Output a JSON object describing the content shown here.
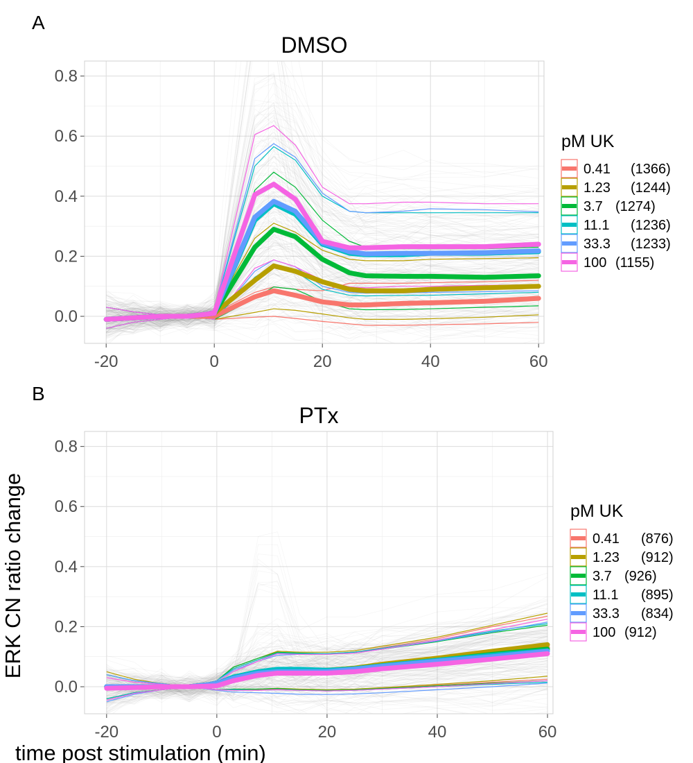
{
  "figure": {
    "shared_xlabel": "time post stimulation (min)",
    "shared_ylabel": "ERK CN ratio change"
  },
  "chart_data": [
    {
      "type": "line",
      "panel_label": "A",
      "title": "DMSO",
      "xlabel": "time post stimulation (min)",
      "ylabel": "ERK CN ratio change",
      "xlim": [
        -24,
        61
      ],
      "ylim": [
        -0.09,
        0.85
      ],
      "xticks": [
        -20,
        0,
        20,
        40,
        60
      ],
      "yticks": [
        0.0,
        0.2,
        0.4,
        0.6,
        0.8
      ],
      "grid": true,
      "legend": {
        "title": "pM UK",
        "position": "right"
      },
      "x": [
        -20,
        -15,
        -10,
        -5,
        0,
        7.5,
        11,
        15,
        20,
        25,
        28,
        35,
        40,
        50,
        60
      ],
      "series": [
        {
          "name": "0.41",
          "count": "(1366)",
          "color": "#F8766D",
          "values": [
            -0.01,
            -0.005,
            0.0,
            0.0,
            0.0,
            0.065,
            0.085,
            0.07,
            0.048,
            0.038,
            0.038,
            0.043,
            0.045,
            0.05,
            0.06
          ],
          "lower": [
            -0.04,
            -0.02,
            -0.01,
            0.0,
            -0.01,
            -0.003,
            0.0,
            -0.007,
            -0.017,
            -0.025,
            -0.03,
            -0.03,
            -0.028,
            -0.025,
            -0.02
          ],
          "upper": [
            0.03,
            0.015,
            0.005,
            0.0,
            0.01,
            0.08,
            0.098,
            0.09,
            0.085,
            0.11,
            0.11,
            0.11,
            0.112,
            0.115,
            0.12
          ]
        },
        {
          "name": "1.23",
          "count": "(1244)",
          "color": "#B79F00",
          "values": [
            -0.01,
            -0.005,
            0.0,
            0.0,
            0.01,
            0.12,
            0.168,
            0.15,
            0.115,
            0.09,
            0.085,
            0.085,
            0.09,
            0.095,
            0.1
          ],
          "lower": [
            -0.04,
            -0.02,
            -0.01,
            0.0,
            -0.01,
            0.013,
            0.025,
            0.02,
            0.008,
            -0.005,
            -0.01,
            -0.01,
            -0.008,
            -0.003,
            0.005
          ],
          "upper": [
            0.03,
            0.015,
            0.005,
            0.0,
            0.02,
            0.26,
            0.31,
            0.28,
            0.22,
            0.19,
            0.185,
            0.185,
            0.19,
            0.192,
            0.195
          ]
        },
        {
          "name": "3.7",
          "count": "(1274)",
          "color": "#00BA38",
          "values": [
            -0.01,
            -0.005,
            0.0,
            0.0,
            0.01,
            0.23,
            0.29,
            0.265,
            0.19,
            0.145,
            0.135,
            0.133,
            0.133,
            0.13,
            0.135
          ],
          "lower": [
            -0.04,
            -0.02,
            -0.01,
            0.0,
            -0.01,
            0.06,
            0.098,
            0.09,
            0.05,
            0.025,
            0.022,
            0.023,
            0.025,
            0.03,
            0.035
          ],
          "upper": [
            0.03,
            0.015,
            0.005,
            0.0,
            0.02,
            0.42,
            0.48,
            0.43,
            0.32,
            0.25,
            0.23,
            0.225,
            0.225,
            0.225,
            0.23
          ]
        },
        {
          "name": "11.1",
          "count": "(1236)",
          "color": "#00BFC4",
          "values": [
            -0.01,
            -0.005,
            0.0,
            0.0,
            0.01,
            0.32,
            0.375,
            0.34,
            0.24,
            0.21,
            0.205,
            0.205,
            0.21,
            0.21,
            0.215
          ],
          "lower": [
            -0.04,
            -0.02,
            -0.01,
            0.0,
            -0.01,
            0.13,
            0.17,
            0.15,
            0.09,
            0.07,
            0.068,
            0.07,
            0.07,
            0.075,
            0.08
          ],
          "upper": [
            0.03,
            0.015,
            0.005,
            0.0,
            0.02,
            0.5,
            0.565,
            0.52,
            0.4,
            0.35,
            0.345,
            0.345,
            0.345,
            0.345,
            0.345
          ]
        },
        {
          "name": "33.3",
          "count": "(1233)",
          "color": "#619CFF",
          "values": [
            -0.01,
            -0.005,
            0.0,
            0.0,
            0.01,
            0.33,
            0.383,
            0.35,
            0.245,
            0.215,
            0.208,
            0.21,
            0.21,
            0.212,
            0.218
          ],
          "lower": [
            -0.04,
            -0.02,
            -0.01,
            0.0,
            -0.01,
            0.15,
            0.188,
            0.165,
            0.1,
            0.08,
            0.077,
            0.078,
            0.08,
            0.082,
            0.085
          ],
          "upper": [
            0.03,
            0.015,
            0.005,
            0.0,
            0.02,
            0.525,
            0.575,
            0.53,
            0.41,
            0.35,
            0.345,
            0.35,
            0.358,
            0.355,
            0.348
          ]
        },
        {
          "name": "100",
          "count": "(1155)",
          "color": "#F564E3",
          "values": [
            -0.01,
            -0.005,
            0.0,
            0.0,
            0.01,
            0.405,
            0.44,
            0.39,
            0.25,
            0.228,
            0.228,
            0.232,
            0.232,
            0.232,
            0.24
          ],
          "lower": [
            -0.04,
            -0.02,
            -0.01,
            0.0,
            -0.01,
            0.16,
            0.188,
            0.165,
            0.12,
            0.098,
            0.095,
            0.1,
            0.1,
            0.103,
            0.105
          ],
          "upper": [
            0.03,
            0.015,
            0.005,
            0.0,
            0.02,
            0.605,
            0.635,
            0.57,
            0.43,
            0.375,
            0.375,
            0.38,
            0.38,
            0.375,
            0.375
          ]
        }
      ]
    },
    {
      "type": "line",
      "panel_label": "B",
      "title": "PTx",
      "xlabel": "time post stimulation (min)",
      "ylabel": "ERK CN ratio change",
      "xlim": [
        -24,
        61
      ],
      "ylim": [
        -0.09,
        0.85
      ],
      "xticks": [
        -20,
        0,
        20,
        40,
        60
      ],
      "yticks": [
        0.0,
        0.2,
        0.4,
        0.6,
        0.8
      ],
      "grid": true,
      "legend": {
        "title": "pM UK",
        "position": "right"
      },
      "x": [
        -20,
        -15,
        -10,
        -5,
        0,
        3,
        7.5,
        11,
        15,
        20,
        25,
        30,
        40,
        50,
        60
      ],
      "series": [
        {
          "name": "0.41",
          "count": "(876)",
          "color": "#F8766D",
          "values": [
            0.0,
            0.0,
            0.0,
            0.0,
            0.01,
            0.03,
            0.048,
            0.052,
            0.052,
            0.052,
            0.06,
            0.07,
            0.09,
            0.11,
            0.13
          ],
          "lower": [
            -0.04,
            -0.02,
            -0.01,
            0.0,
            -0.01,
            -0.01,
            -0.01,
            -0.008,
            -0.01,
            -0.012,
            -0.01,
            -0.005,
            0.005,
            0.015,
            0.025
          ],
          "upper": [
            0.04,
            0.02,
            0.01,
            0.0,
            0.02,
            0.06,
            0.09,
            0.115,
            0.11,
            0.11,
            0.115,
            0.13,
            0.16,
            0.2,
            0.235
          ]
        },
        {
          "name": "1.23",
          "count": "(912)",
          "color": "#B79F00",
          "values": [
            0.0,
            0.0,
            0.0,
            0.0,
            0.01,
            0.03,
            0.05,
            0.055,
            0.055,
            0.055,
            0.062,
            0.075,
            0.095,
            0.118,
            0.14
          ],
          "lower": [
            -0.04,
            -0.02,
            -0.01,
            0.0,
            -0.01,
            -0.008,
            -0.008,
            -0.005,
            -0.008,
            -0.01,
            -0.008,
            -0.003,
            0.008,
            0.02,
            0.035
          ],
          "upper": [
            0.05,
            0.025,
            0.01,
            0.0,
            0.02,
            0.065,
            0.095,
            0.118,
            0.115,
            0.115,
            0.12,
            0.135,
            0.165,
            0.205,
            0.245
          ]
        },
        {
          "name": "3.7",
          "count": "(926)",
          "color": "#00BA38",
          "values": [
            0.0,
            0.0,
            0.0,
            0.0,
            0.01,
            0.032,
            0.05,
            0.055,
            0.055,
            0.053,
            0.06,
            0.07,
            0.088,
            0.108,
            0.125
          ],
          "lower": [
            -0.04,
            -0.02,
            -0.01,
            0.0,
            -0.01,
            -0.008,
            -0.008,
            -0.006,
            -0.01,
            -0.012,
            -0.01,
            -0.006,
            0.003,
            0.012,
            0.02
          ],
          "upper": [
            0.04,
            0.02,
            0.01,
            0.0,
            0.02,
            0.065,
            0.095,
            0.115,
            0.112,
            0.11,
            0.115,
            0.125,
            0.15,
            0.18,
            0.205
          ]
        },
        {
          "name": "11.1",
          "count": "(895)",
          "color": "#00BFC4",
          "values": [
            0.0,
            0.0,
            0.0,
            0.0,
            0.01,
            0.032,
            0.05,
            0.058,
            0.058,
            0.055,
            0.06,
            0.07,
            0.088,
            0.105,
            0.12
          ],
          "lower": [
            -0.04,
            -0.02,
            -0.01,
            0.0,
            -0.01,
            -0.01,
            -0.012,
            -0.01,
            -0.012,
            -0.014,
            -0.012,
            -0.008,
            0.0,
            0.008,
            0.015
          ],
          "upper": [
            0.04,
            0.02,
            0.01,
            0.0,
            0.02,
            0.06,
            0.09,
            0.112,
            0.11,
            0.11,
            0.115,
            0.128,
            0.155,
            0.185,
            0.21
          ]
        },
        {
          "name": "33.3",
          "count": "(834)",
          "color": "#619CFF",
          "values": [
            0.0,
            0.0,
            0.0,
            0.0,
            0.01,
            0.028,
            0.045,
            0.05,
            0.05,
            0.05,
            0.058,
            0.068,
            0.085,
            0.1,
            0.118
          ],
          "lower": [
            -0.05,
            -0.025,
            -0.01,
            0.0,
            -0.012,
            -0.018,
            -0.02,
            -0.022,
            -0.025,
            -0.026,
            -0.024,
            -0.02,
            -0.01,
            0.0,
            0.012
          ],
          "upper": [
            0.04,
            0.02,
            0.01,
            0.0,
            0.02,
            0.055,
            0.085,
            0.105,
            0.108,
            0.108,
            0.112,
            0.125,
            0.152,
            0.182,
            0.215
          ]
        },
        {
          "name": "100",
          "count": "(912)",
          "color": "#F564E3",
          "values": [
            -0.005,
            -0.003,
            0.0,
            0.0,
            0.003,
            0.02,
            0.038,
            0.045,
            0.045,
            0.045,
            0.05,
            0.06,
            0.075,
            0.092,
            0.11
          ],
          "lower": [
            -0.045,
            -0.022,
            -0.01,
            0.0,
            -0.01,
            -0.012,
            -0.012,
            -0.01,
            -0.012,
            -0.014,
            -0.012,
            -0.008,
            0.0,
            0.01,
            0.02
          ],
          "upper": [
            0.03,
            0.015,
            0.008,
            0.0,
            0.015,
            0.05,
            0.085,
            0.11,
            0.108,
            0.108,
            0.112,
            0.125,
            0.155,
            0.19,
            0.225
          ]
        }
      ]
    }
  ]
}
